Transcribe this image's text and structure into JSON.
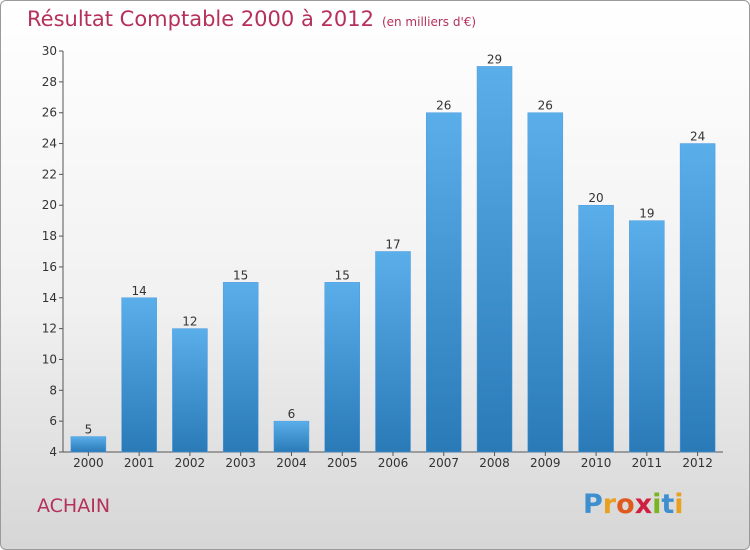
{
  "chart_data": {
    "type": "bar",
    "title": "Résultat Comptable 2000 à 2012",
    "subtitle": "(en milliers d'€)",
    "categories": [
      "2000",
      "2001",
      "2002",
      "2003",
      "2004",
      "2005",
      "2006",
      "2007",
      "2008",
      "2009",
      "2010",
      "2011",
      "2012"
    ],
    "values": [
      5,
      14,
      12,
      15,
      6,
      15,
      17,
      26,
      29,
      26,
      20,
      19,
      24
    ],
    "ylim": [
      4,
      30
    ],
    "yticks": [
      4,
      6,
      8,
      10,
      12,
      14,
      16,
      18,
      20,
      22,
      24,
      26,
      28,
      30
    ],
    "grid": false,
    "bar_color_top": "#5aaeea",
    "bar_color_bottom": "#2a7ab8"
  },
  "location": "ACHAIN",
  "logo": {
    "letters": [
      "P",
      "r",
      "o",
      "x",
      "i",
      "t",
      "i"
    ],
    "colors": [
      "#3d8fd0",
      "#e8a020",
      "#e05a20",
      "#d02040",
      "#7ab520",
      "#3d8fd0",
      "#e8a020"
    ]
  }
}
